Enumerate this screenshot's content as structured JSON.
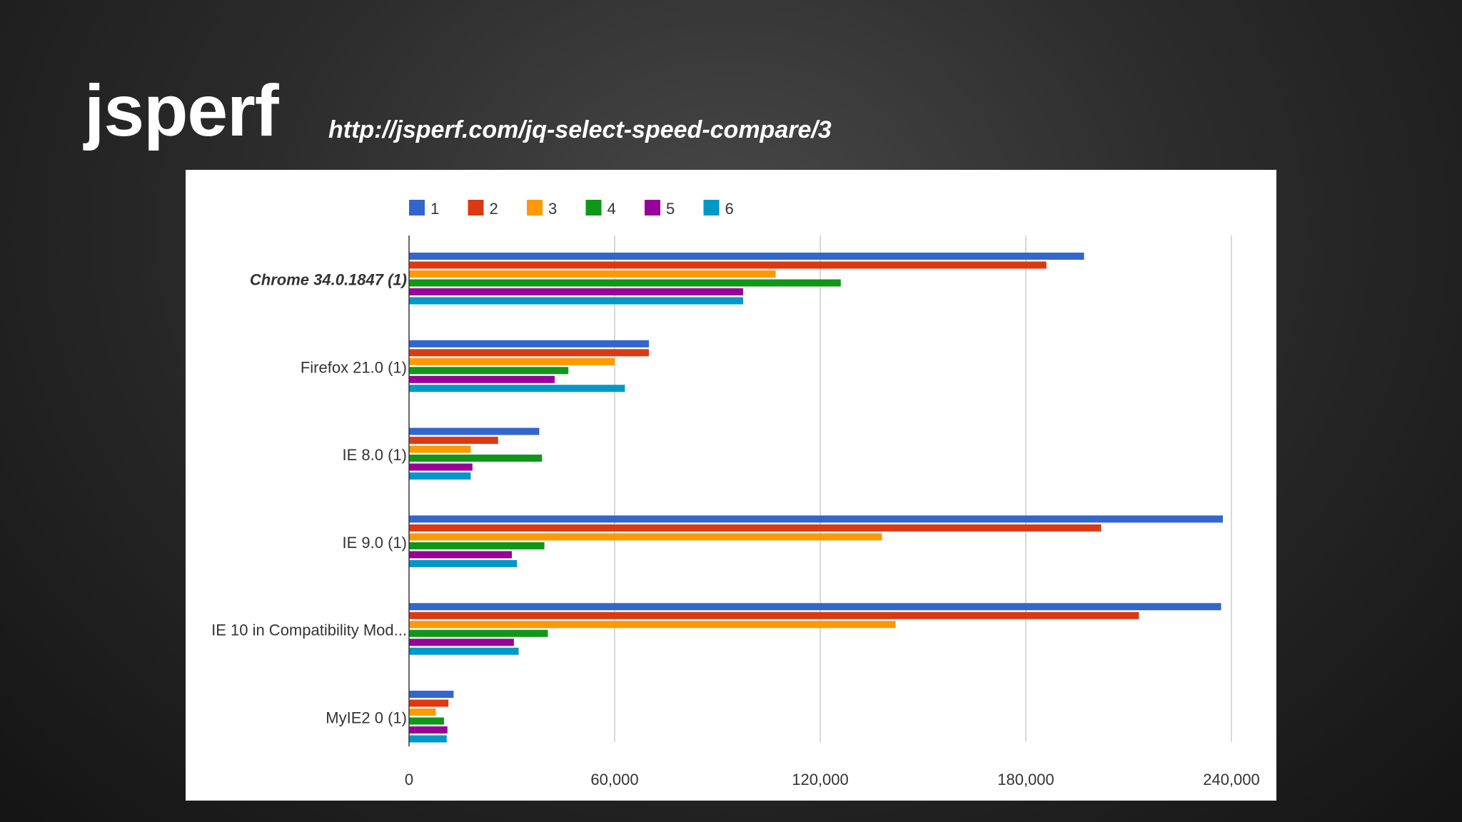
{
  "slide": {
    "title": "jsperf",
    "url": "http://jsperf.com/jq-select-speed-compare/3"
  },
  "chart_data": {
    "type": "bar",
    "orientation": "horizontal",
    "categories": [
      "Chrome 34.0.1847 (1)",
      "Firefox 21.0 (1)",
      "IE 8.0 (1)",
      "IE 9.0 (1)",
      "IE 10 in Compatibility Mod...",
      "MyIE2 0 (1)"
    ],
    "highlighted_category": "Chrome 34.0.1847 (1)",
    "series": [
      {
        "name": "1",
        "color": "#3366cc",
        "values": [
          197000,
          70000,
          38000,
          237500,
          237000,
          13000
        ]
      },
      {
        "name": "2",
        "color": "#dc3912",
        "values": [
          186000,
          70000,
          26000,
          202000,
          213000,
          11500
        ]
      },
      {
        "name": "3",
        "color": "#ff9900",
        "values": [
          107000,
          60000,
          18000,
          138000,
          142000,
          7800
        ]
      },
      {
        "name": "4",
        "color": "#109618",
        "values": [
          126000,
          46500,
          38800,
          39500,
          40500,
          10200
        ]
      },
      {
        "name": "5",
        "color": "#990099",
        "values": [
          97500,
          42500,
          18500,
          30000,
          30600,
          11200
        ]
      },
      {
        "name": "6",
        "color": "#0099c6",
        "values": [
          97500,
          63000,
          18000,
          31500,
          32000,
          11000
        ]
      }
    ],
    "xlim": [
      0,
      240000
    ],
    "xticks": [
      0,
      60000,
      120000,
      180000,
      240000
    ],
    "xtick_labels": [
      "0",
      "60,000",
      "120,000",
      "180,000",
      "240,000"
    ],
    "grid": true,
    "legend_position": "top",
    "title": "",
    "xlabel": "",
    "ylabel": ""
  }
}
